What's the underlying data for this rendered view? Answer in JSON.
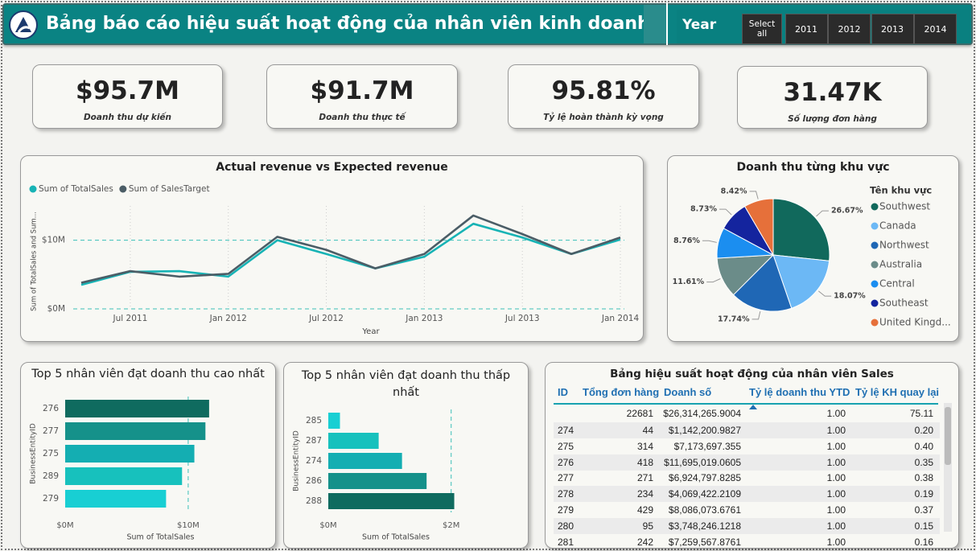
{
  "header": {
    "title": "Bảng báo cáo hiệu suất hoạt động của nhân viên kinh doanh"
  },
  "slicer": {
    "label": "Year",
    "options": [
      "Select all",
      "2011",
      "2012",
      "2013",
      "2014"
    ]
  },
  "kpis": [
    {
      "value": "$95.7M",
      "label": "Doanh thu dự kiến"
    },
    {
      "value": "$91.7M",
      "label": "Doanh thu thực tế"
    },
    {
      "value": "95.81%",
      "label": "Tỷ lệ hoàn thành kỳ vọng"
    },
    {
      "value": "31.47K",
      "label": "Số lượng đơn hàng"
    }
  ],
  "chart_data": [
    {
      "type": "line",
      "title": "Actual revenue vs Expected revenue",
      "x_label": "Year",
      "y_label": "Sum of TotalSales and Sum...",
      "x": [
        "2011-04",
        "2011-07",
        "2011-10",
        "2012-01",
        "2012-04",
        "2012-07",
        "2012-10",
        "2013-01",
        "2013-04",
        "2013-07",
        "2013-10",
        "2014-01"
      ],
      "series": [
        {
          "name": "Sum of TotalSales",
          "color": "#17b3b5",
          "values": [
            3.5,
            5.4,
            5.5,
            4.7,
            10.0,
            8.0,
            5.9,
            7.6,
            12.4,
            10.4,
            8.0,
            10.1
          ]
        },
        {
          "name": "Sum of SalesTarget",
          "color": "#4b5d66",
          "values": [
            3.8,
            5.5,
            4.7,
            5.1,
            10.5,
            8.6,
            5.9,
            8.0,
            13.6,
            10.9,
            8.0,
            10.4
          ]
        }
      ],
      "xlim": [
        "2011-04",
        "2014-01"
      ],
      "xticks": [
        {
          "value": "2011-07",
          "label": "Jul 2011"
        },
        {
          "value": "2012-01",
          "label": "Jan 2012"
        },
        {
          "value": "2012-07",
          "label": "Jul 2012"
        },
        {
          "value": "2013-01",
          "label": "Jan 2013"
        },
        {
          "value": "2013-07",
          "label": "Jul 2013"
        },
        {
          "value": "2014-01",
          "label": "Jan 2014"
        }
      ],
      "ylim": [
        0,
        15
      ],
      "yticks": [
        {
          "value": 0,
          "label": "$0M"
        },
        {
          "value": 10,
          "label": "$10M"
        }
      ],
      "grid": true,
      "legend": "top-left"
    },
    {
      "type": "pie",
      "title": "Doanh thu từng khu vực",
      "legend_title": "Tên khu vực",
      "categories": [
        "Southwest",
        "Canada",
        "Northwest",
        "Australia",
        "Central",
        "Southeast",
        "United Kingd..."
      ],
      "values": [
        26.67,
        18.07,
        17.74,
        11.61,
        8.76,
        8.73,
        8.42
      ],
      "value_labels": [
        "26.67%",
        "18.07%",
        "17.74%",
        "11.61%",
        "8.76%",
        "8.73%",
        "8.42%"
      ],
      "colors": [
        "#11695c",
        "#6cb8f5",
        "#1f67b5",
        "#6b8c89",
        "#1b8ef0",
        "#14249e",
        "#e6703a"
      ],
      "legend": "right"
    },
    {
      "type": "bar",
      "orientation": "horizontal",
      "title": "Top 5 nhân viên đạt doanh thu cao nhất",
      "x_label": "Sum of TotalSales",
      "y_label": "BusinessEntityID",
      "categories": [
        "276",
        "277",
        "275",
        "289",
        "279"
      ],
      "values": [
        11.7,
        11.4,
        10.5,
        9.5,
        8.2
      ],
      "colors": [
        "#0f6b5f",
        "#15918a",
        "#14aeb2",
        "#17c1bd",
        "#18cfd3"
      ],
      "xlim": [
        0,
        15.5
      ],
      "xticks": [
        {
          "value": 0,
          "label": "$0M"
        },
        {
          "value": 10,
          "label": "$10M"
        }
      ],
      "grid": true
    },
    {
      "type": "bar",
      "orientation": "horizontal",
      "title": "Top 5 nhân viên đạt doanh thu thấp nhất",
      "x_label": "Sum of TotalSales",
      "y_label": "BusinessEntityID",
      "categories": [
        "285",
        "287",
        "274",
        "286",
        "288"
      ],
      "values": [
        0.19,
        0.82,
        1.2,
        1.6,
        2.05
      ],
      "colors": [
        "#18cfd3",
        "#17c1bd",
        "#14aeb2",
        "#15918a",
        "#0f6b5f"
      ],
      "xlim": [
        0,
        2.2
      ],
      "xticks": [
        {
          "value": 0,
          "label": "$0M"
        },
        {
          "value": 2,
          "label": "$2M"
        }
      ],
      "grid": true
    }
  ],
  "table": {
    "title": "Bảng hiệu suất hoạt động của nhân viên Sales",
    "columns": [
      "ID",
      "Tổng đơn hàng",
      "Doanh số",
      "Tỷ lệ doanh thu YTD",
      "Tỷ lệ KH quay lại"
    ],
    "total": [
      "22681",
      "$26,314,265.9004",
      "1.00",
      "75.11"
    ],
    "rows": [
      [
        "274",
        "44",
        "$1,142,200.9827",
        "1.00",
        "0.20"
      ],
      [
        "275",
        "314",
        "$7,173,697.355",
        "1.00",
        "0.40"
      ],
      [
        "276",
        "418",
        "$11,695,019.0605",
        "1.00",
        "0.35"
      ],
      [
        "277",
        "271",
        "$6,924,797.8285",
        "1.00",
        "0.38"
      ],
      [
        "278",
        "234",
        "$4,069,422.2109",
        "1.00",
        "0.19"
      ],
      [
        "279",
        "429",
        "$8,086,073.6761",
        "1.00",
        "0.37"
      ],
      [
        "280",
        "95",
        "$3,748,246.1218",
        "1.00",
        "0.15"
      ],
      [
        "281",
        "242",
        "$7,259,567.8761",
        "1.00",
        "0.16"
      ]
    ]
  }
}
